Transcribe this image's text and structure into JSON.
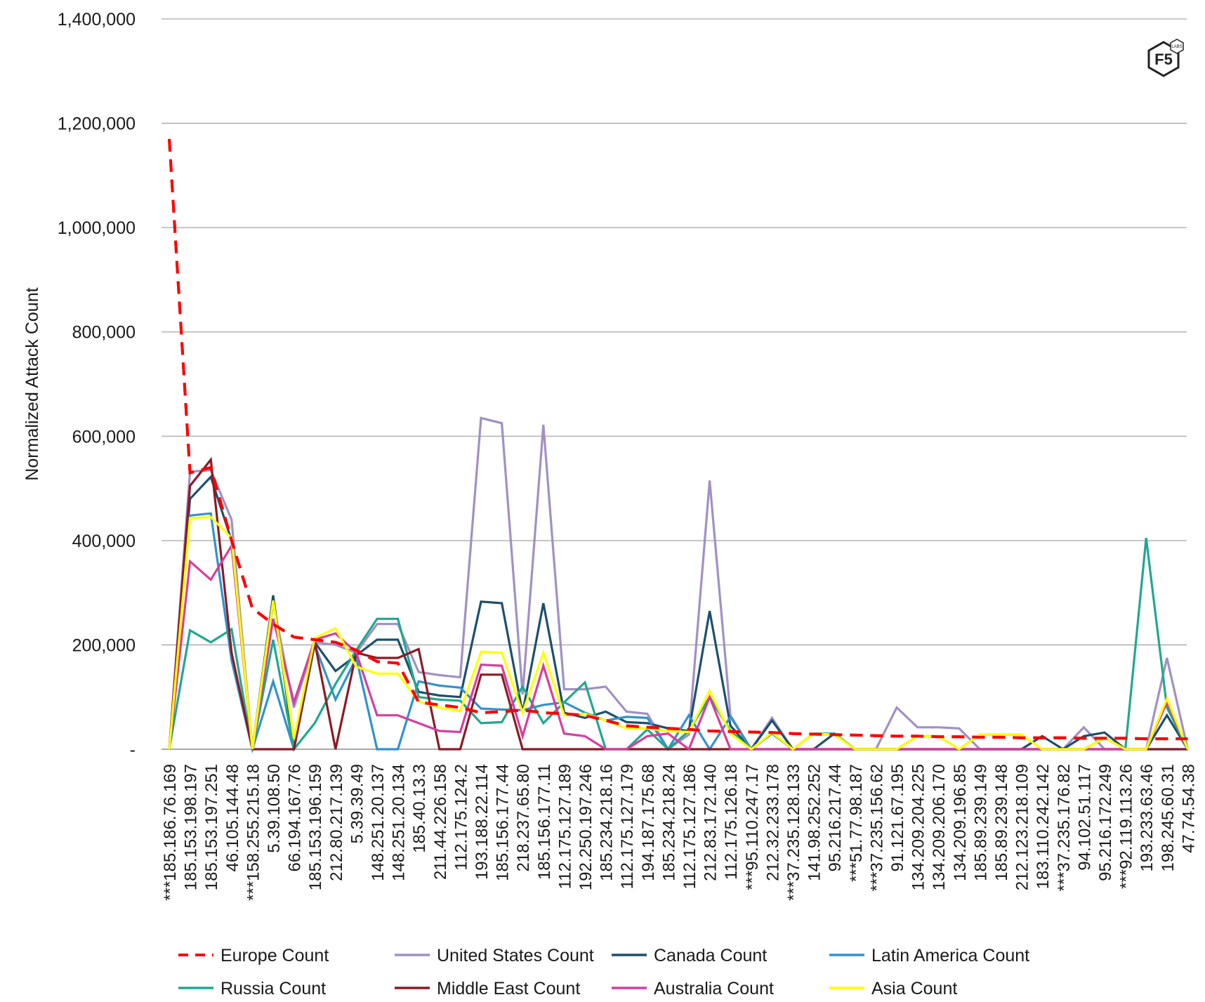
{
  "logo": {
    "text": "F5",
    "sub": "LABS"
  },
  "chart_data": {
    "type": "line",
    "ylabel": "Normalized Attack Count",
    "ylim": [
      0,
      1400000
    ],
    "yticks": [
      {
        "value": 0,
        "label": "-"
      },
      {
        "value": 200000,
        "label": "200,000"
      },
      {
        "value": 400000,
        "label": "400,000"
      },
      {
        "value": 600000,
        "label": "600,000"
      },
      {
        "value": 800000,
        "label": "800,000"
      },
      {
        "value": 1000000,
        "label": "1,000,000"
      },
      {
        "value": 1200000,
        "label": "1,200,000"
      },
      {
        "value": 1400000,
        "label": "1,400,000"
      }
    ],
    "grid": true,
    "legend_position": "bottom",
    "categories": [
      "***185.186.76.169",
      "185.153.198.197",
      "185.153.197.251",
      "46.105.144.48",
      "***158.255.215.18",
      "5.39.108.50",
      "66.194.167.76",
      "185.153.196.159",
      "212.80.217.139",
      "5.39.39.49",
      "148.251.20.137",
      "148.251.20.134",
      "185.40.13.3",
      "211.44.226.158",
      "112.175.124.2",
      "193.188.22.114",
      "185.156.177.44",
      "218.237.65.80",
      "185.156.177.11",
      "112.175.127.189",
      "192.250.197.246",
      "185.234.218.16",
      "112.175.127.179",
      "194.187.175.68",
      "185.234.218.24",
      "112.175.127.186",
      "212.83.172.140",
      "112.175.126.18",
      "***95.110.247.17",
      "212.32.233.178",
      "***37.235.128.133",
      "141.98.252.252",
      "95.216.217.44",
      "***51.77.98.187",
      "***37.235.156.62",
      "91.121.67.195",
      "134.209.204.225",
      "134.209.206.170",
      "134.209.196.85",
      "185.89.239.149",
      "185.89.239.148",
      "212.123.218.109",
      "183.110.242.142",
      "***37.235.176.82",
      "94.102.51.117",
      "95.216.172.249",
      "***92.119.113.26",
      "193.233.63.46",
      "198.245.60.31",
      "47.74.54.38"
    ],
    "series": [
      {
        "name": "Europe Count",
        "color": "#ff0000",
        "dashed": true,
        "values": [
          1170000,
          530000,
          540000,
          400000,
          270000,
          240000,
          215000,
          210000,
          205000,
          190000,
          168000,
          165000,
          90000,
          85000,
          80000,
          70000,
          72000,
          75000,
          70000,
          68000,
          65000,
          55000,
          45000,
          42000,
          40000,
          38000,
          35000,
          34000,
          33000,
          32000,
          30000,
          29000,
          28000,
          27000,
          26000,
          25000,
          25000,
          24000,
          24000,
          23000,
          23000,
          22000,
          22000,
          22000,
          21000,
          21000,
          21000,
          20000,
          20000,
          20000
        ]
      },
      {
        "name": "United States Count",
        "color": "#a190c4",
        "dashed": false,
        "values": [
          0,
          532000,
          535000,
          440000,
          0,
          280000,
          80000,
          205000,
          200000,
          185000,
          240000,
          240000,
          148000,
          142000,
          138000,
          635000,
          625000,
          105000,
          622000,
          115000,
          115000,
          120000,
          72000,
          68000,
          0,
          28000,
          515000,
          65000,
          0,
          60000,
          0,
          0,
          0,
          0,
          0,
          80000,
          42000,
          42000,
          40000,
          0,
          0,
          0,
          0,
          0,
          42000,
          0,
          0,
          0,
          175000,
          0
        ]
      },
      {
        "name": "Canada Count",
        "color": "#1d4f6e",
        "dashed": false,
        "values": [
          0,
          480000,
          522000,
          400000,
          0,
          295000,
          0,
          205000,
          150000,
          180000,
          210000,
          210000,
          110000,
          103000,
          100000,
          283000,
          280000,
          70000,
          280000,
          70000,
          60000,
          72000,
          52000,
          50000,
          40000,
          35000,
          265000,
          45000,
          0,
          55000,
          0,
          0,
          30000,
          0,
          0,
          0,
          0,
          0,
          0,
          0,
          0,
          0,
          25000,
          0,
          25000,
          32000,
          0,
          0,
          65000,
          0
        ]
      },
      {
        "name": "Latin America Count",
        "color": "#3192cf",
        "dashed": false,
        "values": [
          0,
          448000,
          452000,
          170000,
          0,
          130000,
          0,
          200000,
          95000,
          175000,
          0,
          0,
          130000,
          122000,
          118000,
          78000,
          76000,
          75000,
          85000,
          90000,
          70000,
          55000,
          62000,
          60000,
          0,
          65000,
          0,
          62000,
          0,
          0,
          0,
          0,
          0,
          0,
          0,
          0,
          0,
          0,
          0,
          0,
          0,
          0,
          0,
          0,
          0,
          0,
          0,
          0,
          0,
          0
        ]
      },
      {
        "name": "Russia Count",
        "color": "#20a88e",
        "dashed": false,
        "values": [
          0,
          228000,
          205000,
          230000,
          0,
          210000,
          0,
          50000,
          125000,
          190000,
          250000,
          250000,
          100000,
          95000,
          93000,
          50000,
          52000,
          120000,
          50000,
          90000,
          128000,
          0,
          0,
          38000,
          0,
          35000,
          100000,
          35000,
          0,
          30000,
          0,
          30000,
          30000,
          0,
          0,
          0,
          25000,
          25000,
          0,
          28000,
          28000,
          28000,
          0,
          0,
          0,
          22000,
          0,
          405000,
          80000,
          0
        ]
      },
      {
        "name": "Middle East Count",
        "color": "#8b1a25",
        "dashed": false,
        "values": [
          0,
          505000,
          555000,
          185000,
          0,
          0,
          0,
          205000,
          0,
          185000,
          175000,
          175000,
          192000,
          0,
          0,
          143000,
          143000,
          0,
          0,
          0,
          0,
          0,
          0,
          0,
          0,
          0,
          0,
          0,
          0,
          0,
          0,
          0,
          0,
          0,
          0,
          0,
          0,
          0,
          0,
          0,
          0,
          0,
          0,
          0,
          0,
          0,
          0,
          0,
          0,
          0
        ]
      },
      {
        "name": "Australia Count",
        "color": "#d83d9e",
        "dashed": false,
        "values": [
          0,
          360000,
          325000,
          390000,
          0,
          250000,
          90000,
          210000,
          222000,
          185000,
          65000,
          65000,
          50000,
          35000,
          33000,
          162000,
          160000,
          25000,
          160000,
          30000,
          25000,
          0,
          0,
          25000,
          30000,
          0,
          100000,
          0,
          0,
          0,
          0,
          0,
          0,
          0,
          0,
          0,
          0,
          0,
          0,
          0,
          0,
          0,
          0,
          0,
          0,
          0,
          0,
          0,
          90000,
          0
        ]
      },
      {
        "name": "Asia Count",
        "color": "#ffff00",
        "dashed": false,
        "values": [
          0,
          443000,
          445000,
          405000,
          0,
          285000,
          20000,
          213000,
          232000,
          158000,
          145000,
          145000,
          92000,
          80000,
          73000,
          187000,
          185000,
          70000,
          185000,
          65000,
          68000,
          55000,
          40000,
          40000,
          35000,
          33000,
          112000,
          30000,
          0,
          32000,
          0,
          30000,
          28000,
          0,
          0,
          0,
          25000,
          25000,
          0,
          28000,
          28000,
          28000,
          0,
          0,
          0,
          22000,
          0,
          0,
          97000,
          0
        ]
      }
    ]
  }
}
